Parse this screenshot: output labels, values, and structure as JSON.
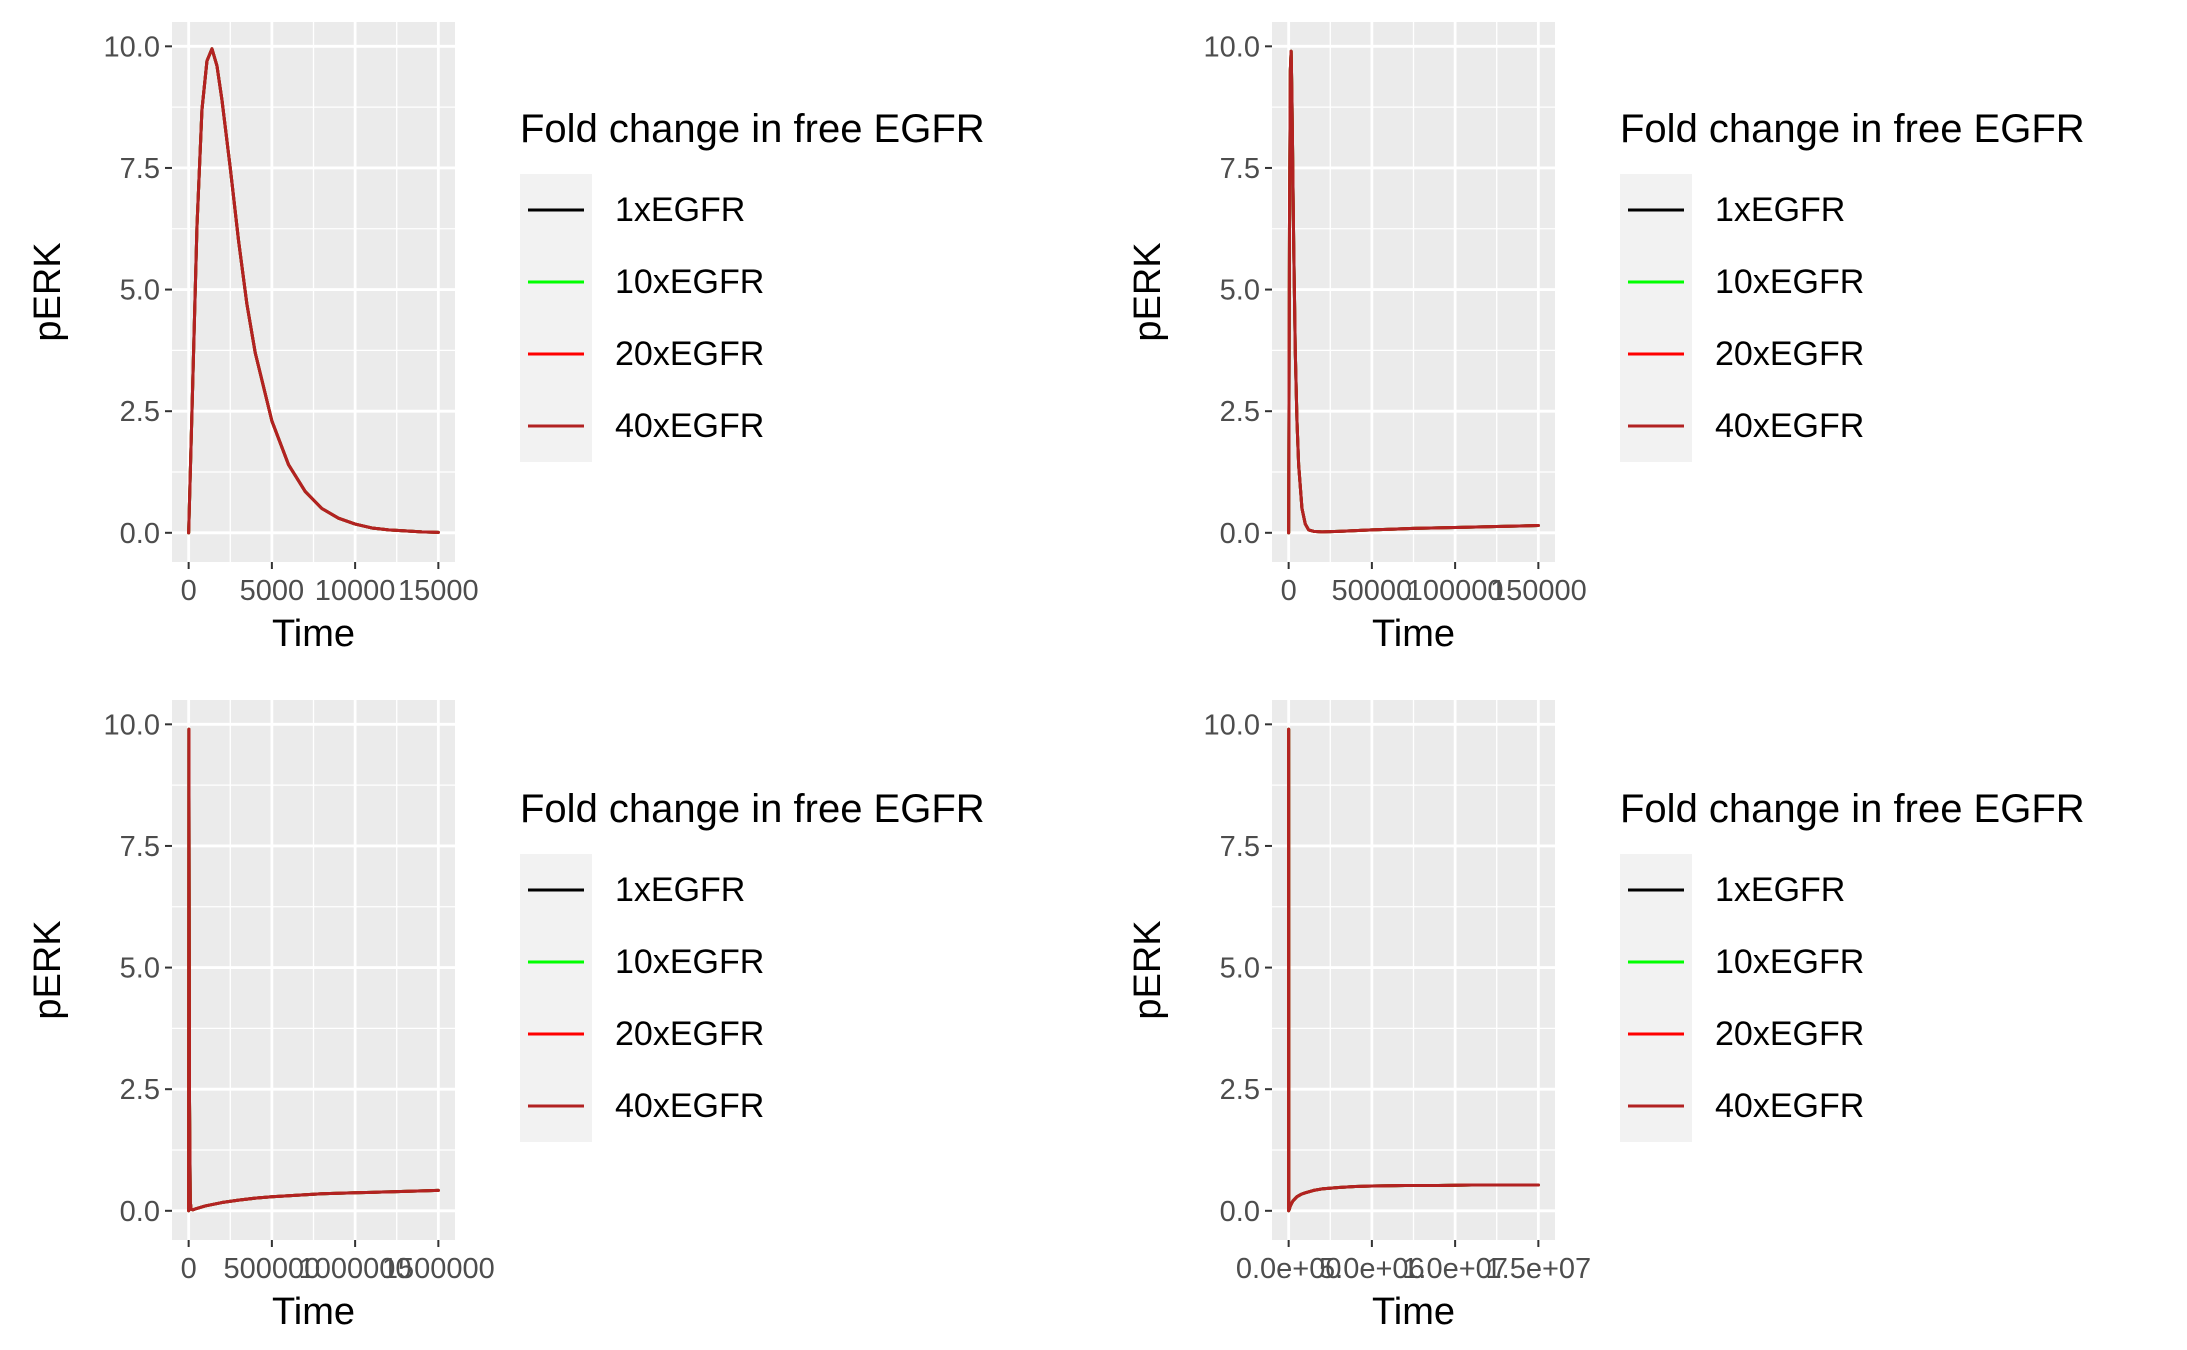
{
  "colors": {
    "panel_background": "#ebebeb",
    "grid_major": "#ffffff",
    "legend_key_background": "#f2f2f2",
    "tick_text": "#4d4d4d",
    "axis_text": "#000000"
  },
  "legend": {
    "title": "Fold change in free EGFR",
    "entries": [
      {
        "label": "1xEGFR",
        "color": "#000000"
      },
      {
        "label": "10xEGFR",
        "color": "#00ff00"
      },
      {
        "label": "20xEGFR",
        "color": "#ff0000"
      },
      {
        "label": "40xEGFR",
        "color": "#b22222"
      }
    ]
  },
  "chart_data": [
    {
      "type": "line",
      "panel": "top-left",
      "xlabel": "Time",
      "ylabel": "pERK",
      "xlim": [
        -1000,
        16000
      ],
      "ylim": [
        -0.6,
        10.5
      ],
      "xticks": [
        0,
        5000,
        10000,
        15000
      ],
      "xtick_labels": [
        "0",
        "5000",
        "10000",
        "15000"
      ],
      "yticks": [
        0,
        2.5,
        5,
        7.5,
        10
      ],
      "ytick_labels": [
        "0.0",
        "2.5",
        "5.0",
        "7.5",
        "10.0"
      ],
      "grid": true,
      "legend_position": "right",
      "series": [
        {
          "name": "1xEGFR",
          "color": "#000000",
          "x": [
            0,
            200,
            500,
            800,
            1100,
            1400,
            1700,
            2000,
            2500,
            3000,
            3500,
            4000,
            5000,
            6000,
            7000,
            8000,
            9000,
            10000,
            11000,
            12000,
            13000,
            14000,
            15000
          ],
          "y": [
            0,
            2.5,
            6.3,
            8.7,
            9.7,
            9.95,
            9.6,
            8.9,
            7.5,
            6.0,
            4.7,
            3.7,
            2.3,
            1.4,
            0.85,
            0.5,
            0.3,
            0.18,
            0.1,
            0.06,
            0.04,
            0.02,
            0.01
          ]
        },
        {
          "name": "10xEGFR",
          "color": "#00ff00",
          "x": [
            0,
            200,
            500,
            800,
            1100,
            1400,
            1700,
            2000,
            2500,
            3000,
            3500,
            4000,
            5000,
            6000,
            7000,
            8000,
            9000,
            10000,
            11000,
            12000,
            13000,
            14000,
            15000
          ],
          "y": [
            0,
            2.5,
            6.3,
            8.7,
            9.7,
            9.95,
            9.6,
            8.9,
            7.5,
            6.0,
            4.7,
            3.7,
            2.3,
            1.4,
            0.85,
            0.5,
            0.3,
            0.18,
            0.1,
            0.06,
            0.04,
            0.02,
            0.01
          ]
        },
        {
          "name": "20xEGFR",
          "color": "#ff0000",
          "x": [
            0,
            200,
            500,
            800,
            1100,
            1400,
            1700,
            2000,
            2500,
            3000,
            3500,
            4000,
            5000,
            6000,
            7000,
            8000,
            9000,
            10000,
            11000,
            12000,
            13000,
            14000,
            15000
          ],
          "y": [
            0,
            2.5,
            6.3,
            8.7,
            9.7,
            9.95,
            9.6,
            8.9,
            7.5,
            6.0,
            4.7,
            3.7,
            2.3,
            1.4,
            0.85,
            0.5,
            0.3,
            0.18,
            0.1,
            0.06,
            0.04,
            0.02,
            0.01
          ]
        },
        {
          "name": "40xEGFR",
          "color": "#b22222",
          "x": [
            0,
            200,
            500,
            800,
            1100,
            1400,
            1700,
            2000,
            2500,
            3000,
            3500,
            4000,
            5000,
            6000,
            7000,
            8000,
            9000,
            10000,
            11000,
            12000,
            13000,
            14000,
            15000
          ],
          "y": [
            0,
            2.5,
            6.3,
            8.7,
            9.7,
            9.95,
            9.6,
            8.9,
            7.5,
            6.0,
            4.7,
            3.7,
            2.3,
            1.4,
            0.85,
            0.5,
            0.3,
            0.18,
            0.1,
            0.06,
            0.04,
            0.02,
            0.01
          ]
        }
      ]
    },
    {
      "type": "line",
      "panel": "top-right",
      "xlabel": "Time",
      "ylabel": "pERK",
      "xlim": [
        -10000,
        160000
      ],
      "ylim": [
        -0.6,
        10.5
      ],
      "xticks": [
        0,
        50000,
        100000,
        150000
      ],
      "xtick_labels": [
        "0",
        "50000",
        "100000",
        "150000"
      ],
      "yticks": [
        0,
        2.5,
        5,
        7.5,
        10
      ],
      "ytick_labels": [
        "0.0",
        "2.5",
        "5.0",
        "7.5",
        "10.0"
      ],
      "grid": true,
      "legend_position": "right",
      "series": [
        {
          "name": "1xEGFR",
          "color": "#000000",
          "x": [
            0,
            500,
            1000,
            1500,
            2000,
            3000,
            4000,
            5000,
            6000,
            8000,
            10000,
            12000,
            15000,
            20000,
            30000,
            50000,
            75000,
            100000,
            125000,
            150000
          ],
          "y": [
            0,
            6.3,
            9.5,
            9.9,
            8.9,
            6.0,
            3.7,
            2.3,
            1.4,
            0.5,
            0.18,
            0.06,
            0.03,
            0.02,
            0.03,
            0.06,
            0.09,
            0.11,
            0.13,
            0.15
          ]
        },
        {
          "name": "10xEGFR",
          "color": "#00ff00",
          "x": [
            0,
            500,
            1000,
            1500,
            2000,
            3000,
            4000,
            5000,
            6000,
            8000,
            10000,
            12000,
            15000,
            20000,
            30000,
            50000,
            75000,
            100000,
            125000,
            150000
          ],
          "y": [
            0,
            6.3,
            9.5,
            9.9,
            8.9,
            6.0,
            3.7,
            2.3,
            1.4,
            0.5,
            0.18,
            0.06,
            0.03,
            0.02,
            0.03,
            0.06,
            0.09,
            0.11,
            0.13,
            0.15
          ]
        },
        {
          "name": "20xEGFR",
          "color": "#ff0000",
          "x": [
            0,
            500,
            1000,
            1500,
            2000,
            3000,
            4000,
            5000,
            6000,
            8000,
            10000,
            12000,
            15000,
            20000,
            30000,
            50000,
            75000,
            100000,
            125000,
            150000
          ],
          "y": [
            0,
            6.3,
            9.5,
            9.9,
            8.9,
            6.0,
            3.7,
            2.3,
            1.4,
            0.5,
            0.18,
            0.06,
            0.03,
            0.02,
            0.03,
            0.06,
            0.09,
            0.11,
            0.13,
            0.15
          ]
        },
        {
          "name": "40xEGFR",
          "color": "#b22222",
          "x": [
            0,
            500,
            1000,
            1500,
            2000,
            3000,
            4000,
            5000,
            6000,
            8000,
            10000,
            12000,
            15000,
            20000,
            30000,
            50000,
            75000,
            100000,
            125000,
            150000
          ],
          "y": [
            0,
            6.3,
            9.5,
            9.9,
            8.9,
            6.0,
            3.7,
            2.3,
            1.4,
            0.5,
            0.18,
            0.06,
            0.03,
            0.02,
            0.03,
            0.06,
            0.09,
            0.11,
            0.13,
            0.15
          ]
        }
      ]
    },
    {
      "type": "line",
      "panel": "bottom-left",
      "xlabel": "Time",
      "ylabel": "pERK",
      "xlim": [
        -100000,
        1600000
      ],
      "ylim": [
        -0.6,
        10.5
      ],
      "xticks": [
        0,
        500000,
        1000000,
        1500000
      ],
      "xtick_labels": [
        "0",
        "500000",
        "1000000",
        "1500000"
      ],
      "yticks": [
        0,
        2.5,
        5,
        7.5,
        10
      ],
      "ytick_labels": [
        "0.0",
        "2.5",
        "5.0",
        "7.5",
        "10.0"
      ],
      "grid": true,
      "legend_position": "right",
      "series": [
        {
          "name": "1xEGFR",
          "color": "#000000",
          "x": [
            0,
            1500,
            5000,
            10000,
            15000,
            25000,
            50000,
            100000,
            200000,
            300000,
            400000,
            500000,
            600000,
            700000,
            800000,
            900000,
            1000000,
            1100000,
            1200000,
            1300000,
            1400000,
            1500000
          ],
          "y": [
            0,
            9.9,
            2.3,
            0.18,
            0.03,
            0.02,
            0.05,
            0.1,
            0.17,
            0.22,
            0.26,
            0.29,
            0.31,
            0.33,
            0.35,
            0.36,
            0.37,
            0.38,
            0.39,
            0.4,
            0.41,
            0.42
          ]
        },
        {
          "name": "10xEGFR",
          "color": "#00ff00",
          "x": [
            0,
            1500,
            5000,
            10000,
            15000,
            25000,
            50000,
            100000,
            200000,
            300000,
            400000,
            500000,
            600000,
            700000,
            800000,
            900000,
            1000000,
            1100000,
            1200000,
            1300000,
            1400000,
            1500000
          ],
          "y": [
            0,
            9.9,
            2.3,
            0.18,
            0.03,
            0.02,
            0.05,
            0.1,
            0.17,
            0.22,
            0.26,
            0.29,
            0.31,
            0.33,
            0.35,
            0.36,
            0.37,
            0.38,
            0.39,
            0.4,
            0.41,
            0.42
          ]
        },
        {
          "name": "20xEGFR",
          "color": "#ff0000",
          "x": [
            0,
            1500,
            5000,
            10000,
            15000,
            25000,
            50000,
            100000,
            200000,
            300000,
            400000,
            500000,
            600000,
            700000,
            800000,
            900000,
            1000000,
            1100000,
            1200000,
            1300000,
            1400000,
            1500000
          ],
          "y": [
            0,
            9.9,
            2.3,
            0.18,
            0.03,
            0.02,
            0.05,
            0.1,
            0.17,
            0.22,
            0.26,
            0.29,
            0.31,
            0.33,
            0.35,
            0.36,
            0.37,
            0.38,
            0.39,
            0.4,
            0.41,
            0.42
          ]
        },
        {
          "name": "40xEGFR",
          "color": "#b22222",
          "x": [
            0,
            1500,
            5000,
            10000,
            15000,
            25000,
            50000,
            100000,
            200000,
            300000,
            400000,
            500000,
            600000,
            700000,
            800000,
            900000,
            1000000,
            1100000,
            1200000,
            1300000,
            1400000,
            1500000
          ],
          "y": [
            0,
            9.9,
            2.3,
            0.18,
            0.03,
            0.02,
            0.05,
            0.1,
            0.17,
            0.22,
            0.26,
            0.29,
            0.31,
            0.33,
            0.35,
            0.36,
            0.37,
            0.38,
            0.39,
            0.4,
            0.41,
            0.42
          ]
        }
      ]
    },
    {
      "type": "line",
      "panel": "bottom-right",
      "xlabel": "Time",
      "ylabel": "pERK",
      "xlim": [
        -1000000,
        16000000
      ],
      "ylim": [
        -0.6,
        10.5
      ],
      "xticks": [
        0,
        5000000,
        10000000,
        15000000
      ],
      "xtick_labels": [
        "0.0e+00",
        "5.0e+06",
        "1.0e+07",
        "1.5e+07"
      ],
      "yticks": [
        0,
        2.5,
        5,
        7.5,
        10
      ],
      "ytick_labels": [
        "0.0",
        "2.5",
        "5.0",
        "7.5",
        "10.0"
      ],
      "grid": true,
      "legend_position": "right",
      "series": [
        {
          "name": "1xEGFR",
          "color": "#000000",
          "x": [
            0,
            1500,
            10000,
            30000,
            100000,
            250000,
            500000,
            750000,
            1000000,
            1500000,
            2000000,
            3000000,
            4000000,
            5000000,
            7000000,
            9000000,
            11000000,
            13000000,
            15000000
          ],
          "y": [
            0,
            9.9,
            0.18,
            0.02,
            0.1,
            0.2,
            0.29,
            0.34,
            0.37,
            0.42,
            0.45,
            0.48,
            0.5,
            0.51,
            0.52,
            0.52,
            0.53,
            0.53,
            0.53
          ]
        },
        {
          "name": "10xEGFR",
          "color": "#00ff00",
          "x": [
            0,
            1500,
            10000,
            30000,
            100000,
            250000,
            500000,
            750000,
            1000000,
            1500000,
            2000000,
            3000000,
            4000000,
            5000000,
            7000000,
            9000000,
            11000000,
            13000000,
            15000000
          ],
          "y": [
            0,
            9.9,
            0.18,
            0.02,
            0.1,
            0.2,
            0.29,
            0.34,
            0.37,
            0.42,
            0.45,
            0.48,
            0.5,
            0.51,
            0.52,
            0.52,
            0.53,
            0.53,
            0.53
          ]
        },
        {
          "name": "20xEGFR",
          "color": "#ff0000",
          "x": [
            0,
            1500,
            10000,
            30000,
            100000,
            250000,
            500000,
            750000,
            1000000,
            1500000,
            2000000,
            3000000,
            4000000,
            5000000,
            7000000,
            9000000,
            11000000,
            13000000,
            15000000
          ],
          "y": [
            0,
            9.9,
            0.18,
            0.02,
            0.1,
            0.2,
            0.29,
            0.34,
            0.37,
            0.42,
            0.45,
            0.48,
            0.5,
            0.51,
            0.52,
            0.52,
            0.53,
            0.53,
            0.53
          ]
        },
        {
          "name": "40xEGFR",
          "color": "#b22222",
          "x": [
            0,
            1500,
            10000,
            30000,
            100000,
            250000,
            500000,
            750000,
            1000000,
            1500000,
            2000000,
            3000000,
            4000000,
            5000000,
            7000000,
            9000000,
            11000000,
            13000000,
            15000000
          ],
          "y": [
            0,
            9.9,
            0.18,
            0.02,
            0.1,
            0.2,
            0.29,
            0.34,
            0.37,
            0.42,
            0.45,
            0.48,
            0.5,
            0.51,
            0.52,
            0.52,
            0.53,
            0.53,
            0.53
          ]
        }
      ]
    }
  ]
}
